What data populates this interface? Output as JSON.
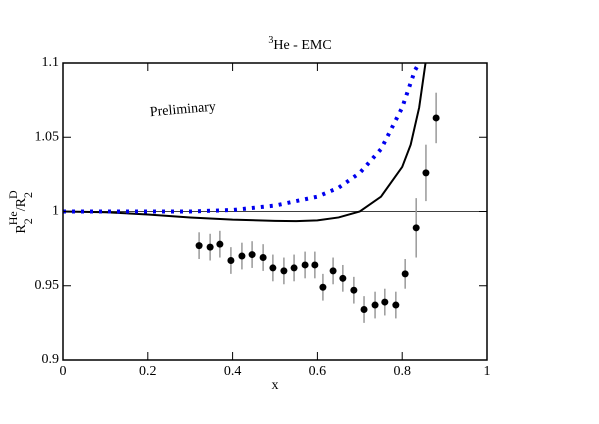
{
  "chart_data": {
    "type": "scatter",
    "title": {
      "sup": "3",
      "text": "He - EMC"
    },
    "xlabel": "x",
    "ylabel": {
      "base": "R",
      "sub1": "2",
      "sup1": "He",
      "slash": "/R",
      "sub2": "2",
      "sup2": "D"
    },
    "annotation": {
      "text": "Preliminary",
      "color": "#ff0000"
    },
    "xlim": [
      0,
      1
    ],
    "ylim": [
      0.9,
      1.1
    ],
    "xticks": [
      0,
      0.2,
      0.4,
      0.6,
      0.8,
      1
    ],
    "yticks": [
      0.9,
      0.95,
      1,
      1.05,
      1.1
    ],
    "reference_line": 1,
    "points": {
      "color": "#000000",
      "x": [
        0.321,
        0.347,
        0.37,
        0.396,
        0.422,
        0.446,
        0.472,
        0.495,
        0.521,
        0.545,
        0.571,
        0.594,
        0.613,
        0.637,
        0.66,
        0.686,
        0.71,
        0.736,
        0.759,
        0.785,
        0.807,
        0.833,
        0.856,
        0.88
      ],
      "values": [
        0.977,
        0.976,
        0.978,
        0.967,
        0.97,
        0.971,
        0.969,
        0.962,
        0.96,
        0.962,
        0.964,
        0.964,
        0.949,
        0.96,
        0.955,
        0.947,
        0.934,
        0.937,
        0.939,
        0.937,
        0.958,
        0.989,
        1.026,
        1.063
      ],
      "errors": [
        0.009,
        0.009,
        0.009,
        0.009,
        0.009,
        0.009,
        0.009,
        0.009,
        0.009,
        0.009,
        0.009,
        0.009,
        0.009,
        0.009,
        0.009,
        0.009,
        0.009,
        0.009,
        0.009,
        0.009,
        0.01,
        0.02,
        0.019,
        0.017
      ]
    },
    "curves": [
      {
        "color": "#000000",
        "dash": false,
        "x": [
          0,
          0.1,
          0.2,
          0.3,
          0.4,
          0.5,
          0.55,
          0.6,
          0.65,
          0.7,
          0.75,
          0.8,
          0.82,
          0.84,
          0.855
        ],
        "values": [
          1.0,
          0.9995,
          0.998,
          0.996,
          0.9945,
          0.9937,
          0.9935,
          0.994,
          0.996,
          1.0,
          1.01,
          1.03,
          1.045,
          1.07,
          1.1
        ]
      },
      {
        "color": "#0000ee",
        "dash": true,
        "x": [
          0,
          0.1,
          0.2,
          0.3,
          0.4,
          0.5,
          0.6,
          0.65,
          0.7,
          0.75,
          0.8,
          0.83,
          0.84
        ],
        "values": [
          1.0,
          1.0,
          1.0,
          1.0,
          1.001,
          1.004,
          1.01,
          1.016,
          1.026,
          1.042,
          1.07,
          1.095,
          1.1
        ]
      }
    ]
  }
}
